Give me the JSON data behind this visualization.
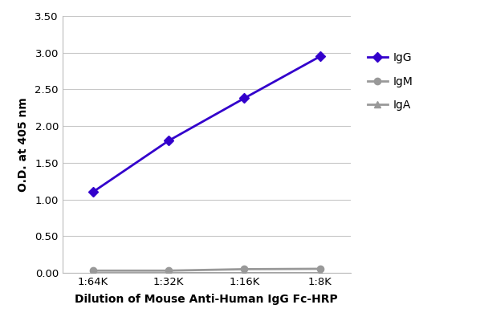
{
  "x_labels": [
    "1:64K",
    "1:32K",
    "1:16K",
    "1:8K"
  ],
  "x_values": [
    1,
    2,
    3,
    4
  ],
  "IgG_values": [
    1.1,
    1.8,
    2.38,
    2.95
  ],
  "IgM_values": [
    0.03,
    0.03,
    0.05,
    0.055
  ],
  "IgA_values": [
    -0.005,
    -0.005,
    -0.005,
    -0.005
  ],
  "IgG_color": "#3300CC",
  "IgM_color": "#999999",
  "IgA_color": "#999999",
  "ylabel": "O.D. at 405 nm",
  "xlabel": "Dilution of Mouse Anti-Human IgG Fc-HRP",
  "ylim": [
    0.0,
    3.5
  ],
  "yticks": [
    0.0,
    0.5,
    1.0,
    1.5,
    2.0,
    2.5,
    3.0,
    3.5
  ],
  "background_color": "#ffffff",
  "grid_color": "#c8c8c8"
}
